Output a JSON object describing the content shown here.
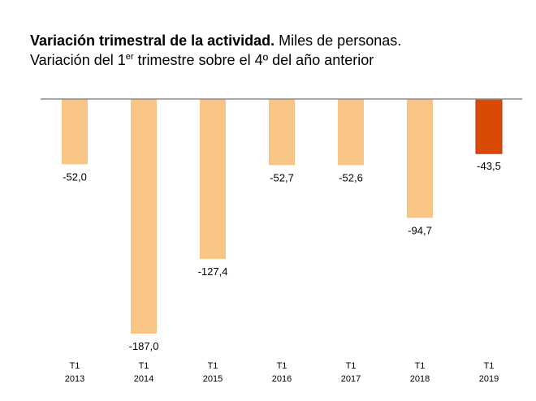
{
  "chart_data": {
    "type": "bar",
    "title": "Variación trimestral de la actividad.",
    "subtitle_part1": "Miles de personas.",
    "subtitle_line2_before_sup": "Variación del 1",
    "subtitle_line2_sup": "er",
    "subtitle_line2_after_sup": " trimestre sobre el 4º del año anterior",
    "categories": [
      {
        "line1": "T1",
        "line2": "2013"
      },
      {
        "line1": "T1",
        "line2": "2014"
      },
      {
        "line1": "T1",
        "line2": "2015"
      },
      {
        "line1": "T1",
        "line2": "2016"
      },
      {
        "line1": "T1",
        "line2": "2017"
      },
      {
        "line1": "T1",
        "line2": "2018"
      },
      {
        "line1": "T1",
        "line2": "2019"
      }
    ],
    "values": [
      -52.0,
      -187.0,
      -127.4,
      -52.7,
      -52.6,
      -94.7,
      -43.5
    ],
    "value_labels": [
      "-52,0",
      "-187,0",
      "-127,4",
      "-52,7",
      "-52,6",
      "-94,7",
      "-43,5"
    ],
    "highlight_index": 6,
    "ylim": [
      -187,
      0
    ],
    "grid": false,
    "colors": {
      "bar": "#F9C585",
      "bar_highlight": "#D94A04",
      "bar_highlight_stroke": "#B8311A",
      "axis": "#8C8C8C"
    }
  }
}
